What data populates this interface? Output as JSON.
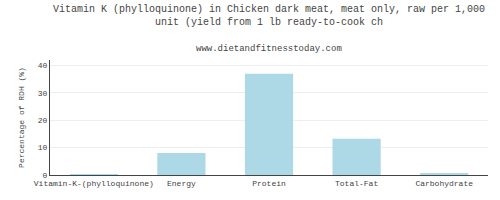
{
  "chart_data": {
    "type": "bar",
    "title": "Vitamin K (phylloquinone) in Chicken dark meat, meat only, raw per 1,000 unit (yield from 1 lb ready-to-cook ch",
    "subtitle": "www.dietandfitnesstoday.com",
    "categories": [
      "Vitamin-K-(phylloquinone)",
      "Energy",
      "Protein",
      "Total-Fat",
      "Carbohydrate"
    ],
    "values": [
      0.2,
      8.0,
      37.0,
      13.2,
      0.5
    ],
    "color": "#add8e6",
    "ylabel": "Percentage of RDH (%)",
    "ylim": [
      0,
      42
    ],
    "yticks": [
      0,
      10,
      20,
      30,
      40
    ],
    "grid": true
  }
}
